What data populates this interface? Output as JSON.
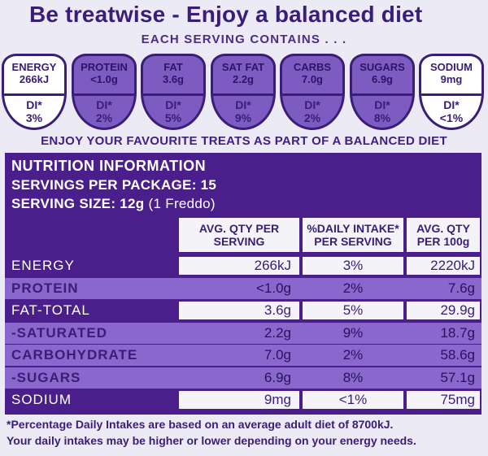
{
  "headline": "Be treatwise - Enjoy a balanced diet",
  "serving_contains": "EACH SERVING CONTAINS . . .",
  "gda_icons": [
    {
      "name": "ENERGY",
      "qty": "266kJ",
      "di_label": "DI*",
      "di_value": "3%",
      "highlight": false
    },
    {
      "name": "PROTEIN",
      "qty": "<1.0g",
      "di_label": "DI*",
      "di_value": "2%",
      "highlight": true
    },
    {
      "name": "FAT",
      "qty": "3.6g",
      "di_label": "DI*",
      "di_value": "5%",
      "highlight": true
    },
    {
      "name": "SAT FAT",
      "qty": "2.2g",
      "di_label": "DI*",
      "di_value": "9%",
      "highlight": true
    },
    {
      "name": "CARBS",
      "qty": "7.0g",
      "di_label": "DI*",
      "di_value": "2%",
      "highlight": true
    },
    {
      "name": "SUGARS",
      "qty": "6.9g",
      "di_label": "DI*",
      "di_value": "8%",
      "highlight": true
    },
    {
      "name": "SODIUM",
      "qty": "9mg",
      "di_label": "DI*",
      "di_value": "<1%",
      "highlight": false
    }
  ],
  "enjoy_text": "ENJOY YOUR FAVOURITE TREATS AS PART OF A BALANCED DIET",
  "nutrition": {
    "title": "NUTRITION INFORMATION",
    "servings_label": "SERVINGS PER PACKAGE: 15",
    "serving_size_label": "SERVING SIZE: 12g",
    "serving_size_note": "(1 Freddo)",
    "headers": [
      "AVG. QTY PER SERVING",
      "%DAILY INTAKE* PER SERVING",
      "AVG. QTY PER 100g"
    ],
    "rows": [
      {
        "label": "ENERGY",
        "per_serving": "266kJ",
        "daily_intake": "3%",
        "per_100g": "2220kJ",
        "style": "dark"
      },
      {
        "label": "PROTEIN",
        "per_serving": "<1.0g",
        "daily_intake": "2%",
        "per_100g": "7.6g",
        "style": "lite"
      },
      {
        "label": "FAT-TOTAL",
        "per_serving": "3.6g",
        "daily_intake": "5%",
        "per_100g": "29.9g",
        "style": "dark"
      },
      {
        "label": "-SATURATED",
        "per_serving": "2.2g",
        "daily_intake": "9%",
        "per_100g": "18.7g",
        "style": "lite"
      },
      {
        "label": "CARBOHYDRATE",
        "per_serving": "7.0g",
        "daily_intake": "2%",
        "per_100g": "58.6g",
        "style": "lite"
      },
      {
        "label": "-SUGARS",
        "per_serving": "6.9g",
        "daily_intake": "8%",
        "per_100g": "57.1g",
        "style": "lite"
      },
      {
        "label": "SODIUM",
        "per_serving": "9mg",
        "daily_intake": "<1%",
        "per_100g": "75mg",
        "style": "dark"
      }
    ]
  },
  "footnote_1": "*Percentage Daily Intakes are based on an average adult diet of 8700kJ.",
  "footnote_2": "Your daily intakes may be higher or lower depending on your energy needs.",
  "colors": {
    "brand_purple": "#4a1f8c",
    "light_purple": "#8a67cc",
    "text_purple": "#3a1d77"
  }
}
